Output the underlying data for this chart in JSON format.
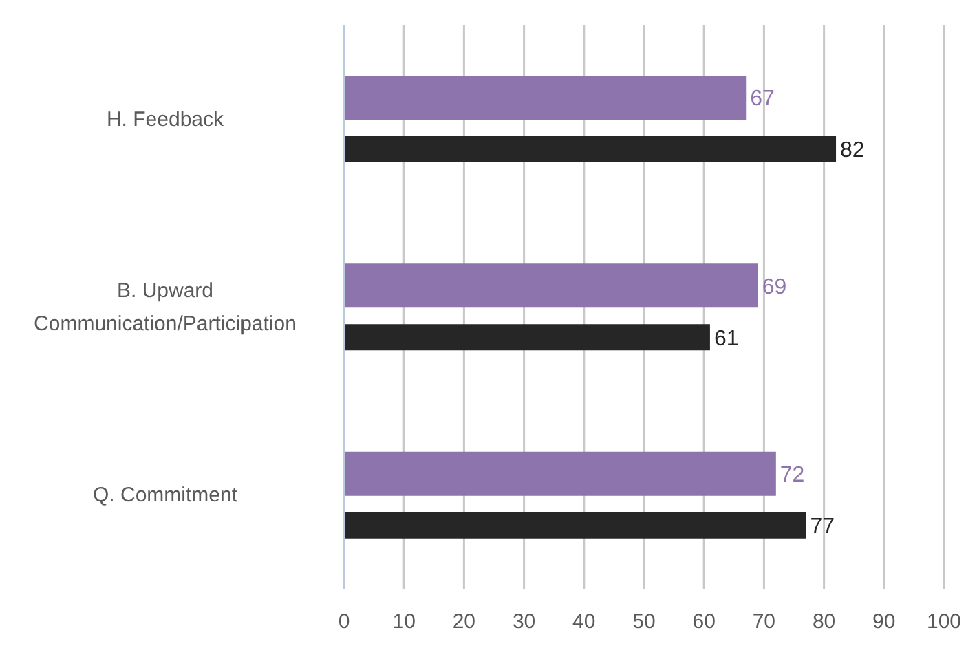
{
  "chart_data": {
    "type": "bar",
    "orientation": "horizontal",
    "categories": [
      "H. Feedback",
      "B. Upward Communication/Participation",
      "Q. Commitment"
    ],
    "series": [
      {
        "color": "#8e74ac",
        "values": [
          67,
          69,
          72
        ]
      },
      {
        "color": "#262626",
        "values": [
          82,
          61,
          77
        ]
      }
    ],
    "xlim": [
      0,
      100
    ],
    "xticks": [
      0,
      10,
      20,
      30,
      40,
      50,
      60,
      70,
      80,
      90,
      100
    ],
    "grid": "x",
    "legend": false,
    "data_labels": true
  }
}
